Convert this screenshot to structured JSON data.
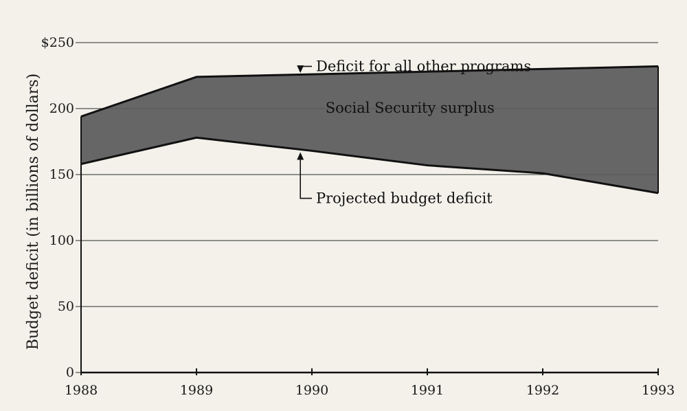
{
  "chart_data": {
    "type": "area",
    "x": [
      1988,
      1989,
      1990,
      1991,
      1992,
      1993
    ],
    "series": [
      {
        "name": "Projected budget deficit",
        "values": [
          158,
          178,
          168,
          157,
          151,
          136
        ]
      },
      {
        "name": "Deficit for all other programs",
        "values": [
          194,
          224,
          226,
          228,
          230,
          232
        ]
      }
    ],
    "band_label": "Social Security surplus",
    "ylabel": "Budget deficit (in billions of dollars)",
    "ylim": [
      0,
      250
    ],
    "xlim": [
      1988,
      1993
    ],
    "yticks": [
      0,
      50,
      100,
      150,
      200,
      250
    ],
    "ytick_labels": [
      "0",
      "50",
      "100",
      "150",
      "200",
      "$250"
    ],
    "xticks": [
      1988,
      1989,
      1990,
      1991,
      1992,
      1993
    ],
    "xtick_labels": [
      "1988",
      "1989",
      "1990",
      "1991",
      "1992",
      "1993"
    ],
    "grid": true,
    "fill_color": "#5a5a5a",
    "annotations": [
      {
        "text": "Deficit for all other programs",
        "x": 1990.0,
        "y": 232,
        "target_x": 1989.9,
        "target_y": 226
      },
      {
        "text": "Projected budget deficit",
        "x": 1990.0,
        "y": 132,
        "target_x": 1989.9,
        "target_y": 168
      }
    ]
  }
}
